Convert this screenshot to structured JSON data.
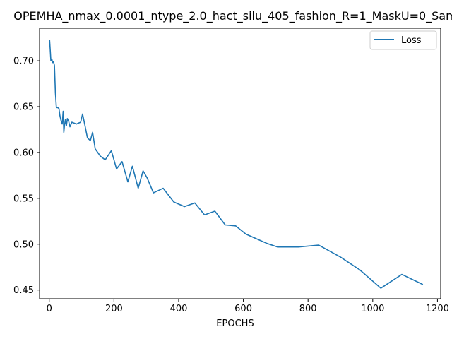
{
  "chart_data": {
    "type": "line",
    "title": "OPEMHA_nmax_0.0001_ntype_2.0_hact_silu_405_fashion_R=1_MaskU=0_Sam",
    "xlabel": "EPOCHS",
    "ylabel": "",
    "xlim": [
      -30,
      1210
    ],
    "ylim": [
      0.4405,
      0.7355
    ],
    "xticks": [
      0,
      200,
      400,
      600,
      800,
      1000,
      1200
    ],
    "yticks": [
      0.45,
      0.5,
      0.55,
      0.6,
      0.65,
      0.7
    ],
    "ytick_labels": [
      "0.45",
      "0.50",
      "0.55",
      "0.60",
      "0.65",
      "0.70"
    ],
    "grid": false,
    "legend_position": "top-right",
    "series": [
      {
        "name": "Loss",
        "color": "#1f77b4",
        "x": [
          1,
          3,
          5,
          8,
          10,
          13,
          16,
          19,
          22,
          26,
          30,
          33,
          37,
          40,
          43,
          45,
          47,
          50,
          53,
          56,
          60,
          64,
          70,
          77,
          84,
          90,
          97,
          103,
          110,
          118,
          127,
          134,
          142,
          158,
          173,
          192,
          208,
          225,
          243,
          257,
          275,
          290,
          303,
          322,
          352,
          385,
          418,
          450,
          480,
          512,
          544,
          576,
          608,
          640,
          672,
          705,
          770,
          833,
          900,
          960,
          1025,
          1090,
          1155
        ],
        "y": [
          0.723,
          0.712,
          0.7,
          0.702,
          0.698,
          0.699,
          0.695,
          0.665,
          0.649,
          0.649,
          0.648,
          0.64,
          0.634,
          0.631,
          0.645,
          0.622,
          0.629,
          0.636,
          0.629,
          0.637,
          0.634,
          0.628,
          0.633,
          0.632,
          0.631,
          0.632,
          0.633,
          0.642,
          0.63,
          0.616,
          0.613,
          0.622,
          0.604,
          0.596,
          0.592,
          0.602,
          0.582,
          0.59,
          0.568,
          0.585,
          0.561,
          0.58,
          0.572,
          0.556,
          0.561,
          0.546,
          0.541,
          0.545,
          0.532,
          0.536,
          0.521,
          0.52,
          0.511,
          0.506,
          0.501,
          0.497,
          0.497,
          0.499,
          0.486,
          0.472,
          0.452,
          0.467,
          0.456
        ]
      }
    ]
  }
}
